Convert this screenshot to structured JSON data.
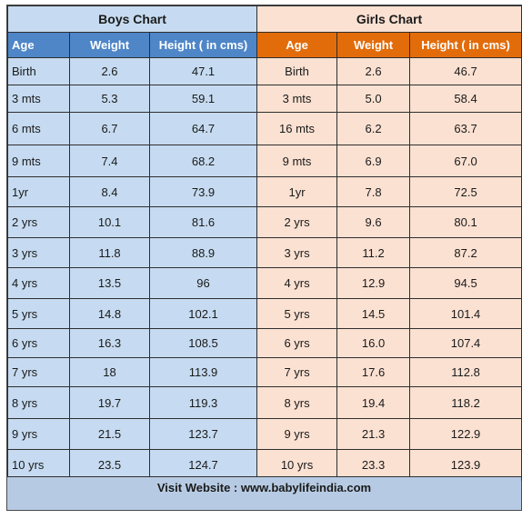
{
  "boys": {
    "title": "Boys Chart",
    "headers": [
      "Age",
      "Weight",
      "Height ( in cms)"
    ],
    "rows": [
      [
        "Birth",
        "2.6",
        "47.1"
      ],
      [
        "3 mts",
        "5.3",
        "59.1"
      ],
      [
        "6 mts",
        "6.7",
        "64.7"
      ],
      [
        "9 mts",
        "7.4",
        "68.2"
      ],
      [
        "1yr",
        "8.4",
        "73.9"
      ],
      [
        "2 yrs",
        "10.1",
        "81.6"
      ],
      [
        "3 yrs",
        "11.8",
        "88.9"
      ],
      [
        "4 yrs",
        "13.5",
        "96"
      ],
      [
        "5 yrs",
        "14.8",
        "102.1"
      ],
      [
        "6 yrs",
        "16.3",
        "108.5"
      ],
      [
        "7 yrs",
        "18",
        "113.9"
      ],
      [
        "8 yrs",
        "19.7",
        "119.3"
      ],
      [
        "9 yrs",
        "21.5",
        "123.7"
      ],
      [
        "10 yrs",
        "23.5",
        "124.7"
      ]
    ]
  },
  "girls": {
    "title": "Girls Chart",
    "headers": [
      "Age",
      "Weight",
      "Height ( in cms)"
    ],
    "rows": [
      [
        "Birth",
        "2.6",
        "46.7"
      ],
      [
        "3 mts",
        "5.0",
        "58.4"
      ],
      [
        "16 mts",
        "6.2",
        "63.7"
      ],
      [
        "9 mts",
        "6.9",
        "67.0"
      ],
      [
        "1yr",
        "7.8",
        "72.5"
      ],
      [
        "2 yrs",
        "9.6",
        "80.1"
      ],
      [
        "3 yrs",
        "11.2",
        "87.2"
      ],
      [
        "4 yrs",
        "12.9",
        "94.5"
      ],
      [
        "5 yrs",
        "14.5",
        "101.4"
      ],
      [
        "6 yrs",
        "16.0",
        "107.4"
      ],
      [
        "7 yrs",
        "17.6",
        "112.8"
      ],
      [
        "8 yrs",
        "19.4",
        "118.2"
      ],
      [
        "9 yrs",
        "21.3",
        "122.9"
      ],
      [
        "10 yrs",
        "23.3",
        "123.9"
      ]
    ]
  },
  "footer": {
    "text": "Visit Website : www.babylifeindia.com"
  },
  "colors": {
    "boys_header": "#4e86c8",
    "boys_fill": "#c6dbf1",
    "girls_header": "#e36c0a",
    "girls_fill": "#fbe1d2",
    "footer_fill": "#b6cbe3"
  }
}
